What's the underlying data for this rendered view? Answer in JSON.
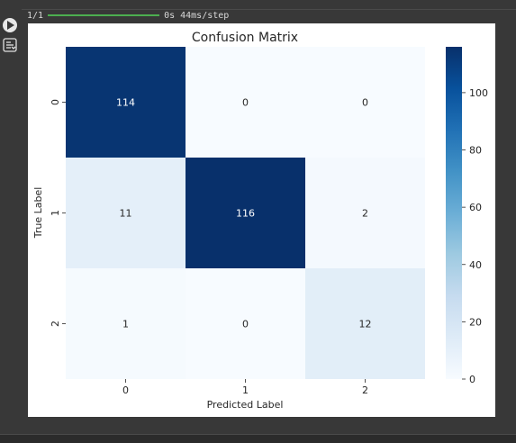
{
  "progress": {
    "steps": "1/1",
    "status": "0s 44ms/step",
    "fraction": 1.0
  },
  "icons": {
    "run": "play-icon",
    "output_toggle": "output-toggle-icon"
  },
  "colors": {
    "colormap": "Blues",
    "progress": "#4caf50"
  },
  "chart_data": {
    "type": "heatmap",
    "title": "Confusion Matrix",
    "xlabel": "Predicted Label",
    "ylabel": "True Label",
    "x_categories": [
      "0",
      "1",
      "2"
    ],
    "y_categories": [
      "0",
      "1",
      "2"
    ],
    "values": [
      [
        114,
        0,
        0
      ],
      [
        11,
        116,
        2
      ],
      [
        1,
        0,
        12
      ]
    ],
    "annotations": true,
    "colorbar": {
      "range": [
        0,
        116
      ],
      "ticks": [
        0,
        20,
        40,
        60,
        80,
        100
      ],
      "tick_labels": [
        "0",
        "20",
        "40",
        "60",
        "80",
        "100"
      ]
    }
  }
}
